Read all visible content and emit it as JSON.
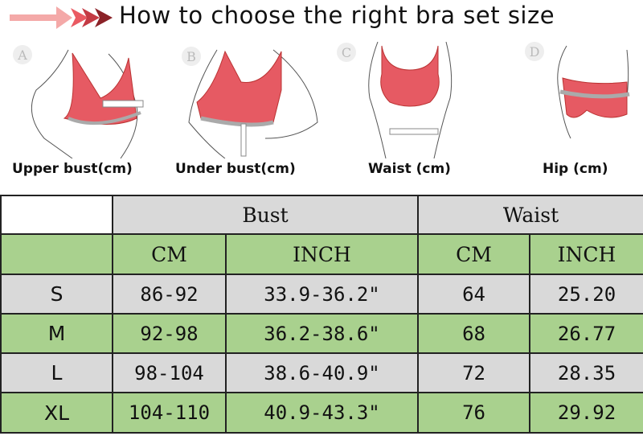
{
  "title": "How to choose the right bra set size",
  "colors": {
    "arrow_light": "#f4a9a8",
    "arrow_mid": "#ea5a62",
    "arrow_dark": "#8b2228",
    "garment": "#e65a63",
    "header_grey": "#d9d9d9",
    "row_green": "#a9d18e"
  },
  "figures": [
    {
      "letter": "A",
      "caption": "Upper bust(cm)"
    },
    {
      "letter": "B",
      "caption": "Under bust(cm)"
    },
    {
      "letter": "C",
      "caption": "Waist (cm)"
    },
    {
      "letter": "D",
      "caption": "Hip (cm)"
    }
  ],
  "table": {
    "groups": [
      "Bust",
      "Waist"
    ],
    "units": [
      "CM",
      "INCH",
      "CM",
      "INCH"
    ],
    "rows": [
      {
        "size": "S",
        "bust_cm": "86-92",
        "bust_inch": "33.9-36.2\"",
        "waist_cm": "64",
        "waist_inch": "25.20"
      },
      {
        "size": "M",
        "bust_cm": "92-98",
        "bust_inch": "36.2-38.6\"",
        "waist_cm": "68",
        "waist_inch": "26.77"
      },
      {
        "size": "L",
        "bust_cm": "98-104",
        "bust_inch": "38.6-40.9\"",
        "waist_cm": "72",
        "waist_inch": "28.35"
      },
      {
        "size": "XL",
        "bust_cm": "104-110",
        "bust_inch": "40.9-43.3\"",
        "waist_cm": "76",
        "waist_inch": "29.92"
      }
    ]
  }
}
